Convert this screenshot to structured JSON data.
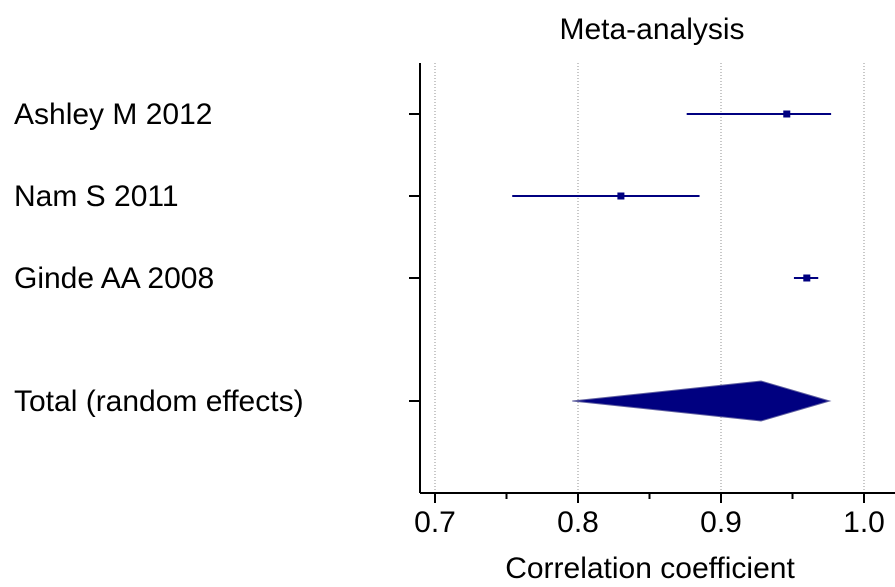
{
  "chart_data": {
    "type": "forest",
    "title": "Meta-analysis",
    "xlabel": "Correlation coefficient",
    "xlim": [
      0.7,
      1.0
    ],
    "x_ticks": [
      "0.7",
      "0.8",
      "0.9",
      "1.0"
    ],
    "grid": "vertical dotted at major ticks",
    "studies": [
      {
        "label": "Ashley M 2012",
        "estimate": 0.946,
        "ci": [
          0.876,
          0.977
        ]
      },
      {
        "label": "Nam S 2011",
        "estimate": 0.83,
        "ci": [
          0.754,
          0.885
        ]
      },
      {
        "label": "Ginde AA 2008",
        "estimate": 0.96,
        "ci": [
          0.951,
          0.968
        ]
      }
    ],
    "pooled": {
      "label": "Total (random effects)",
      "estimate": 0.928,
      "ci": [
        0.796,
        0.976
      ]
    },
    "colors": {
      "marker": "#000080",
      "axis": "#000000",
      "grid": "#909090"
    }
  }
}
